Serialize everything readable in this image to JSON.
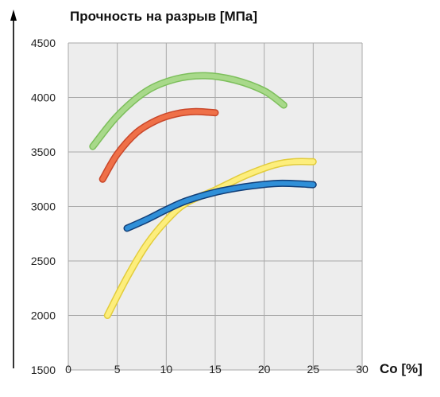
{
  "chart_data": {
    "type": "line",
    "title": "Прочность на разрыв [МПа]",
    "xlabel": "Co [%]",
    "ylabel": "",
    "xlim": [
      0,
      30
    ],
    "ylim": [
      1500,
      4500
    ],
    "x_ticks": [
      "0",
      "5",
      "10",
      "15",
      "20",
      "25",
      "30"
    ],
    "y_ticks": [
      "1500",
      "2000",
      "2500",
      "3000",
      "3500",
      "4000",
      "4500"
    ],
    "grid": true,
    "background": "#ededed",
    "grid_color": "#a9a9a9",
    "series": [
      {
        "color": "#a8d98a",
        "outline": "#7dbf5c",
        "points": [
          [
            2.5,
            3550
          ],
          [
            5,
            3830
          ],
          [
            8,
            4060
          ],
          [
            11,
            4170
          ],
          [
            14,
            4200
          ],
          [
            17,
            4160
          ],
          [
            20,
            4060
          ],
          [
            22,
            3930
          ]
        ]
      },
      {
        "color": "#ef7048",
        "outline": "#c9472a",
        "points": [
          [
            3.5,
            3250
          ],
          [
            5,
            3480
          ],
          [
            7,
            3680
          ],
          [
            9,
            3790
          ],
          [
            11,
            3850
          ],
          [
            13,
            3870
          ],
          [
            15,
            3860
          ]
        ]
      },
      {
        "color": "#fdee7c",
        "outline": "#e2cc3c",
        "points": [
          [
            4,
            2000
          ],
          [
            6,
            2350
          ],
          [
            8,
            2650
          ],
          [
            10,
            2870
          ],
          [
            12,
            3030
          ],
          [
            15,
            3150
          ],
          [
            18,
            3280
          ],
          [
            21,
            3380
          ],
          [
            23,
            3410
          ],
          [
            25,
            3410
          ]
        ]
      },
      {
        "color": "#2f8fd8",
        "outline": "#123f78",
        "points": [
          [
            6,
            2800
          ],
          [
            8,
            2880
          ],
          [
            10,
            2970
          ],
          [
            12,
            3050
          ],
          [
            15,
            3130
          ],
          [
            18,
            3180
          ],
          [
            21,
            3210
          ],
          [
            23,
            3210
          ],
          [
            25,
            3200
          ]
        ]
      }
    ]
  }
}
